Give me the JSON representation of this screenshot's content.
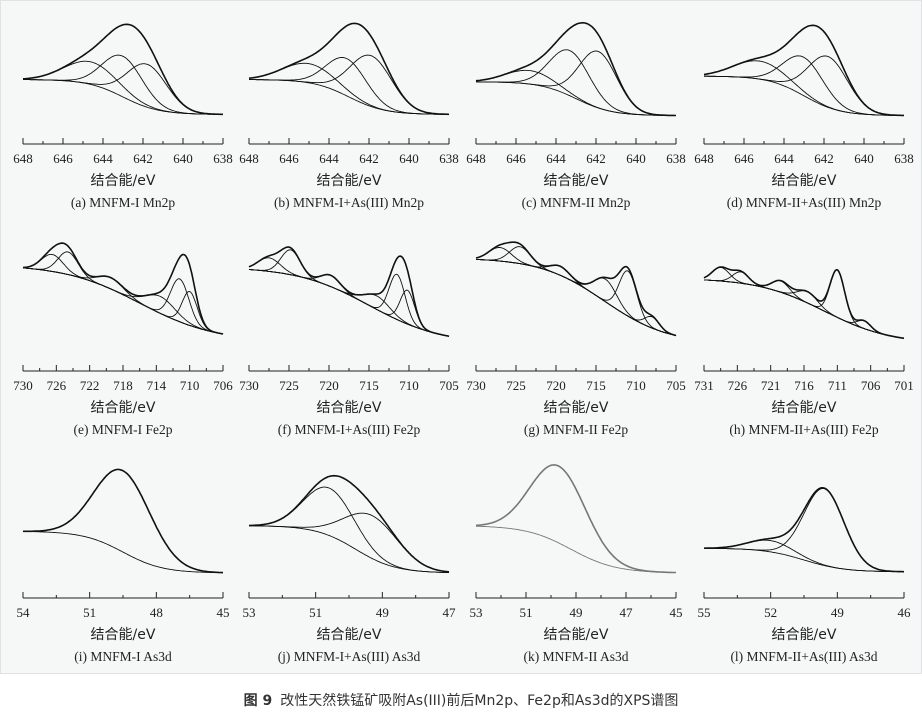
{
  "figure_caption": {
    "number": "图 9",
    "text": "改性天然铁锰矿吸附As(III)前后Mn2p、Fe2p和As3d的XPS谱图"
  },
  "chart_data": [
    {
      "type": "line",
      "label": "(a)",
      "title": "MNFM-I Mn2p",
      "xlabel": "结合能/eV",
      "xlim": [
        648,
        638
      ],
      "ticks": [
        648,
        646,
        644,
        642,
        640,
        638
      ],
      "color": "#111111",
      "baseline": {
        "left": 0.35,
        "right": 0.04,
        "center": 643,
        "width": 0.9
      },
      "peaks": [
        {
          "center": 644.6,
          "height": 0.2,
          "sigma": 1.3
        },
        {
          "center": 643.0,
          "height": 0.36,
          "sigma": 1.0
        },
        {
          "center": 641.8,
          "height": 0.38,
          "sigma": 1.0
        }
      ]
    },
    {
      "type": "line",
      "label": "(b)",
      "title": "MNFM-I+As(III) Mn2p",
      "xlabel": "结合能/eV",
      "xlim": [
        648,
        638
      ],
      "ticks": [
        648,
        646,
        644,
        642,
        640,
        638
      ],
      "color": "#111111",
      "baseline": {
        "left": 0.35,
        "right": 0.04,
        "center": 643,
        "width": 0.9
      },
      "peaks": [
        {
          "center": 645.0,
          "height": 0.17,
          "sigma": 1.3
        },
        {
          "center": 643.1,
          "height": 0.33,
          "sigma": 1.0
        },
        {
          "center": 641.9,
          "height": 0.45,
          "sigma": 1.05
        }
      ]
    },
    {
      "type": "line",
      "label": "(c)",
      "title": "MNFM-II Mn2p",
      "xlabel": "结合能/eV",
      "xlim": [
        648,
        638
      ],
      "ticks": [
        648,
        646,
        644,
        642,
        640,
        638
      ],
      "color": "#111111",
      "baseline": {
        "left": 0.33,
        "right": 0.03,
        "center": 643,
        "width": 0.9
      },
      "peaks": [
        {
          "center": 645.3,
          "height": 0.12,
          "sigma": 1.2
        },
        {
          "center": 643.3,
          "height": 0.4,
          "sigma": 1.0
        },
        {
          "center": 641.9,
          "height": 0.5,
          "sigma": 0.95
        }
      ]
    },
    {
      "type": "line",
      "label": "(d)",
      "title": "MNFM-II+As(III) Mn2p",
      "xlabel": "结合能/eV",
      "xlim": [
        648,
        638
      ],
      "ticks": [
        648,
        646,
        644,
        642,
        640,
        638
      ],
      "color": "#111111",
      "baseline": {
        "left": 0.38,
        "right": 0.03,
        "center": 643,
        "width": 0.9
      },
      "peaks": [
        {
          "center": 645.2,
          "height": 0.16,
          "sigma": 1.3
        },
        {
          "center": 643.0,
          "height": 0.34,
          "sigma": 1.0
        },
        {
          "center": 641.8,
          "height": 0.45,
          "sigma": 1.0
        }
      ]
    },
    {
      "type": "line",
      "label": "(e)",
      "title": "MNFM-I Fe2p",
      "xlabel": "结合能/eV",
      "xlim": [
        730,
        706
      ],
      "ticks": [
        730,
        726,
        722,
        718,
        714,
        710,
        706
      ],
      "color": "#111111",
      "baseline": {
        "left": 0.72,
        "right": 0.04,
        "center": 716,
        "width": 4.5
      },
      "peaks": [
        {
          "center": 726.5,
          "height": 0.15,
          "sigma": 1.3
        },
        {
          "center": 724.6,
          "height": 0.2,
          "sigma": 1.2
        },
        {
          "center": 719.5,
          "height": 0.1,
          "sigma": 1.5
        },
        {
          "center": 713.5,
          "height": 0.15,
          "sigma": 1.8
        },
        {
          "center": 711.2,
          "height": 0.38,
          "sigma": 1.1
        },
        {
          "center": 710.0,
          "height": 0.3,
          "sigma": 0.9
        }
      ]
    },
    {
      "type": "line",
      "label": "(f)",
      "title": "MNFM-I+As(III) Fe2p",
      "xlabel": "结合能/eV",
      "xlim": [
        730,
        705
      ],
      "ticks": [
        730,
        725,
        720,
        715,
        710,
        705
      ],
      "color": "#111111",
      "baseline": {
        "left": 0.7,
        "right": 0.02,
        "center": 715,
        "width": 4.5
      },
      "peaks": [
        {
          "center": 727.5,
          "height": 0.12,
          "sigma": 1.4
        },
        {
          "center": 724.8,
          "height": 0.22,
          "sigma": 1.2
        },
        {
          "center": 719.8,
          "height": 0.1,
          "sigma": 1.2
        },
        {
          "center": 714.0,
          "height": 0.12,
          "sigma": 1.6
        },
        {
          "center": 711.5,
          "height": 0.4,
          "sigma": 1.0
        },
        {
          "center": 710.2,
          "height": 0.3,
          "sigma": 0.9
        }
      ]
    },
    {
      "type": "line",
      "label": "(g)",
      "title": "MNFM-II Fe2p",
      "xlabel": "结合能/eV",
      "xlim": [
        730,
        705
      ],
      "ticks": [
        730,
        725,
        720,
        715,
        710,
        705
      ],
      "color": "#111111",
      "baseline": {
        "left": 0.78,
        "right": 0.02,
        "center": 714,
        "width": 4
      },
      "peaks": [
        {
          "center": 727.0,
          "height": 0.12,
          "sigma": 1.4
        },
        {
          "center": 724.5,
          "height": 0.15,
          "sigma": 1.3
        },
        {
          "center": 719.5,
          "height": 0.08,
          "sigma": 1.2
        },
        {
          "center": 713.8,
          "height": 0.2,
          "sigma": 1.4
        },
        {
          "center": 711.0,
          "height": 0.4,
          "sigma": 1.1
        },
        {
          "center": 708.0,
          "height": 0.1,
          "sigma": 0.9
        }
      ]
    },
    {
      "type": "line",
      "label": "(h)",
      "title": "MNFM-II+As(III) Fe2p",
      "xlabel": "结合能/eV",
      "xlim": [
        731,
        701
      ],
      "ticks": [
        731,
        726,
        721,
        716,
        711,
        706,
        701
      ],
      "color": "#111111",
      "baseline": {
        "left": 0.6,
        "right": 0.02,
        "center": 713,
        "width": 5
      },
      "peaks": [
        {
          "center": 728.5,
          "height": 0.12,
          "sigma": 1.3
        },
        {
          "center": 725.5,
          "height": 0.1,
          "sigma": 1.2
        },
        {
          "center": 719.5,
          "height": 0.1,
          "sigma": 1.3
        },
        {
          "center": 715.5,
          "height": 0.1,
          "sigma": 1.5
        },
        {
          "center": 711.0,
          "height": 0.42,
          "sigma": 1.1
        },
        {
          "center": 707.0,
          "height": 0.07,
          "sigma": 1.0
        }
      ]
    },
    {
      "type": "line",
      "label": "(i)",
      "title": "MNFM-I As3d",
      "xlabel": "结合能/eV",
      "xlim": [
        54,
        45
      ],
      "ticks": [
        54,
        51,
        48,
        45
      ],
      "color": "#111111",
      "baseline": {
        "left": 0.37,
        "right": 0.0,
        "center": 49.5,
        "width": 0.9
      },
      "peaks": [
        {
          "center": 49.5,
          "height": 0.72,
          "sigma": 1.25
        }
      ]
    },
    {
      "type": "line",
      "label": "(j)",
      "title": "MNFM-I+As(III) As3d",
      "xlabel": "结合能/eV",
      "xlim": [
        53,
        47
      ],
      "ticks": [
        53,
        51,
        49,
        47
      ],
      "color": "#111111",
      "baseline": {
        "left": 0.42,
        "right": 0.0,
        "center": 49.8,
        "width": 0.6
      },
      "peaks": [
        {
          "center": 50.6,
          "height": 0.42,
          "sigma": 0.75
        },
        {
          "center": 49.3,
          "height": 0.38,
          "sigma": 0.8
        }
      ]
    },
    {
      "type": "line",
      "label": "(k)",
      "title": "MNFM-II As3d",
      "xlabel": "结合能/eV",
      "xlim": [
        53,
        45
      ],
      "ticks": [
        53,
        51,
        49,
        47,
        45
      ],
      "color": "#777777",
      "baseline": {
        "left": 0.42,
        "right": 0.0,
        "center": 49.2,
        "width": 0.9
      },
      "peaks": [
        {
          "center": 49.7,
          "height": 0.68,
          "sigma": 1.1
        }
      ]
    },
    {
      "type": "line",
      "label": "(l)",
      "title": "MNFM-II+As(III) As3d",
      "xlabel": "结合能/eV",
      "xlim": [
        55,
        46
      ],
      "ticks": [
        55,
        52,
        49,
        46
      ],
      "color": "#111111",
      "baseline": {
        "left": 0.22,
        "right": 0.01,
        "center": 50.5,
        "width": 0.9
      },
      "peaks": [
        {
          "center": 52.0,
          "height": 0.1,
          "sigma": 1.0
        },
        {
          "center": 49.6,
          "height": 0.68,
          "sigma": 0.9
        }
      ]
    }
  ]
}
